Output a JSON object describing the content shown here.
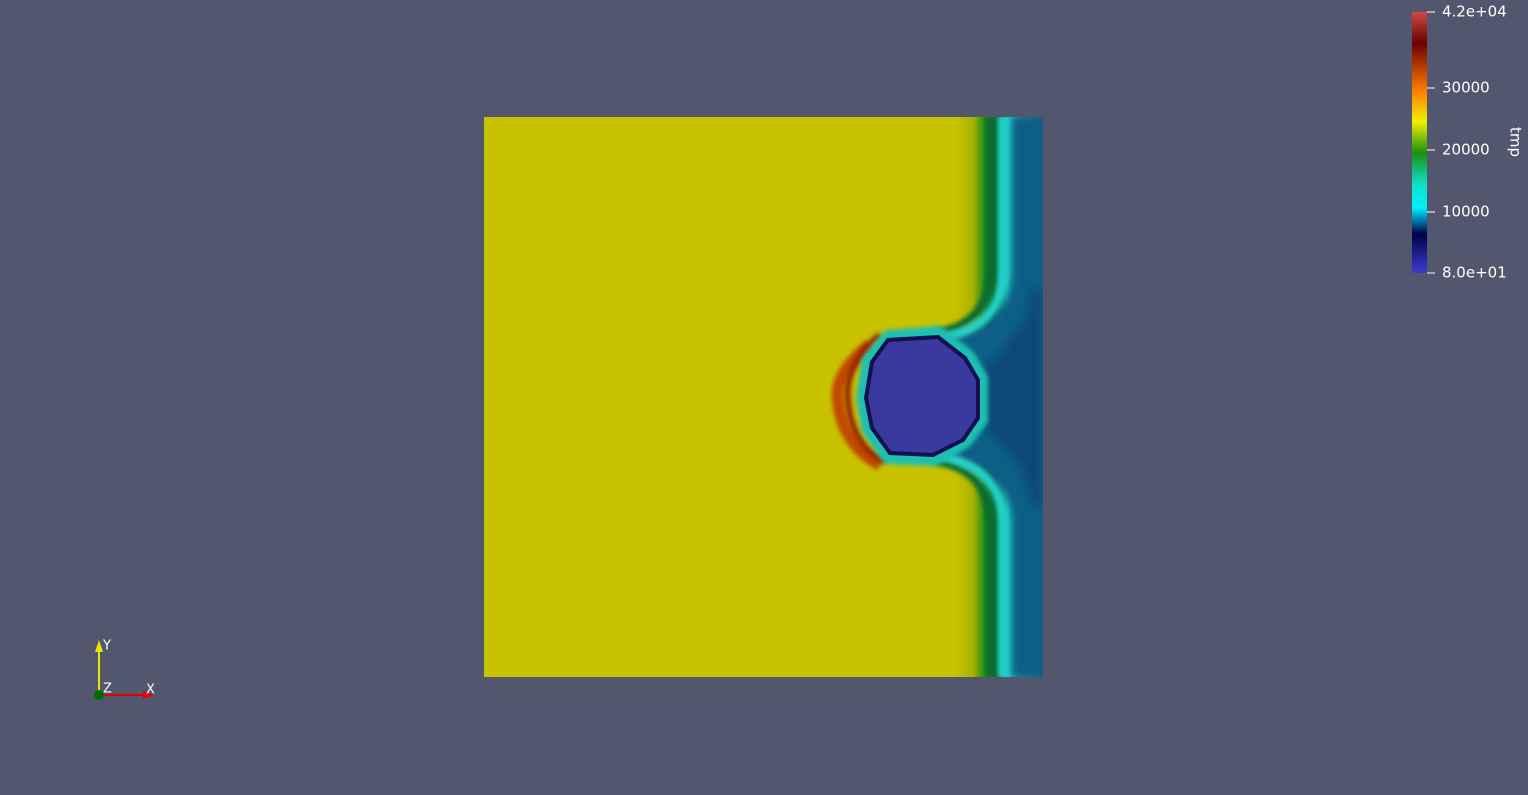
{
  "colorbar": {
    "title": "tmp",
    "labels": [
      "4.2e+04",
      "30000",
      "20000",
      "10000",
      "8.0e+01"
    ]
  },
  "axes": {
    "x": "X",
    "y": "Y",
    "z": "Z"
  }
}
